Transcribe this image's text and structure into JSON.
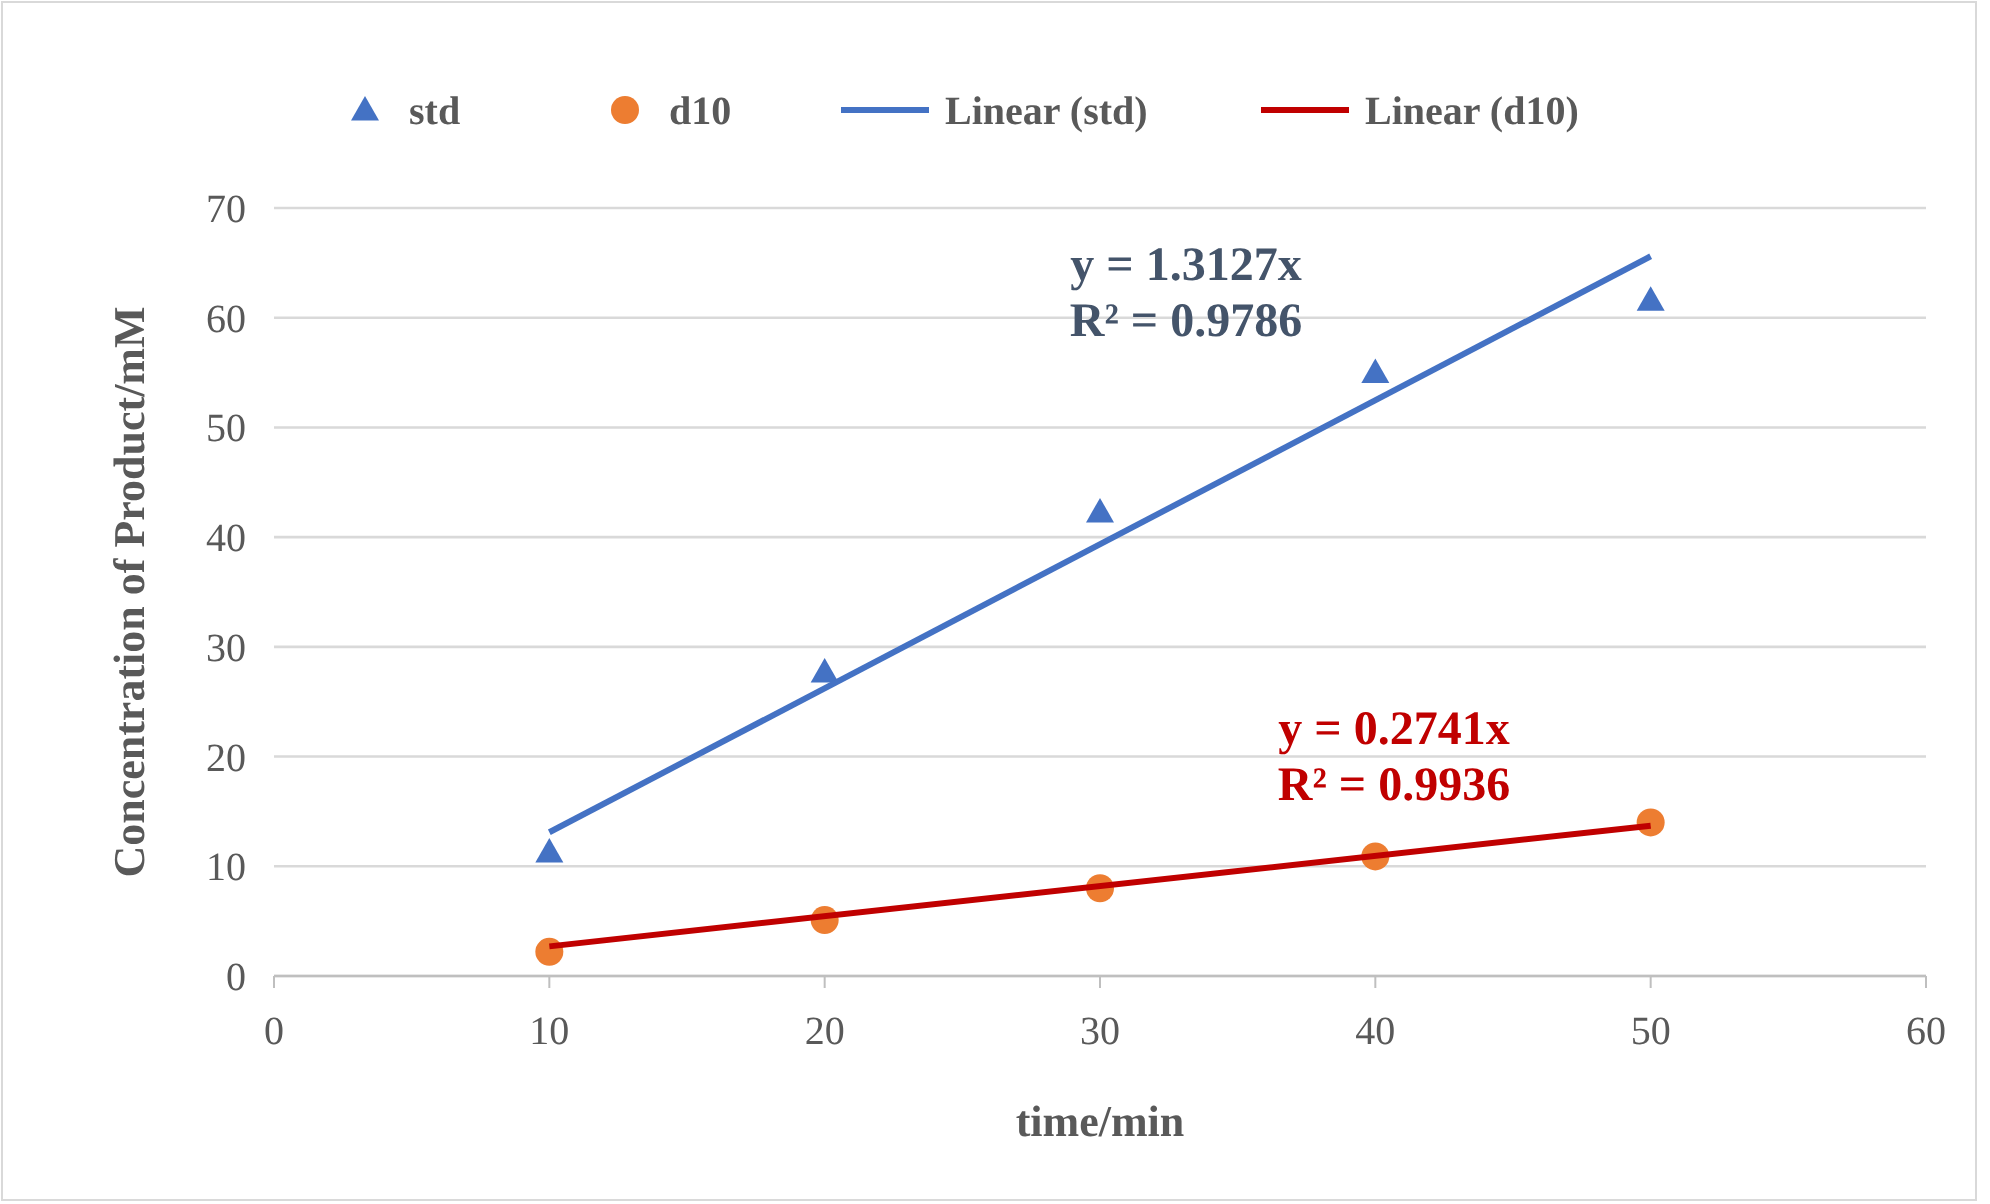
{
  "chart_data": {
    "type": "scatter",
    "xlabel": "time/min",
    "ylabel": "Concentration of Product/mM",
    "xlim": [
      0,
      60
    ],
    "xticks": [
      0,
      10,
      20,
      30,
      40,
      50,
      60
    ],
    "ylim": [
      0,
      70
    ],
    "yticks": [
      0,
      10,
      20,
      30,
      40,
      50,
      60,
      70
    ],
    "grid": "y",
    "legend": "top",
    "series": [
      {
        "name": "std",
        "marker": "triangle",
        "color": "#4472c4",
        "x": [
          10,
          20,
          30,
          40,
          50
        ],
        "values": [
          11.3,
          27.7,
          42.3,
          55.0,
          61.6
        ]
      },
      {
        "name": "d10",
        "marker": "circle",
        "color": "#ed7d31",
        "x": [
          10,
          20,
          30,
          40,
          50
        ],
        "values": [
          2.2,
          5.1,
          8.0,
          10.9,
          14.0
        ]
      },
      {
        "name": "Linear (std)",
        "type": "line",
        "marker": "none",
        "line_style": "solid",
        "color": "#4472c4",
        "x": [
          10,
          50
        ],
        "values": [
          13.1,
          65.6
        ]
      },
      {
        "name": "Linear (d10)",
        "type": "line",
        "marker": "none",
        "line_style": "solid",
        "color": "#c00000",
        "x": [
          10,
          50
        ],
        "values": [
          2.7,
          13.7
        ]
      }
    ],
    "annotations": [
      "y = 1.3127x\nR² = 0.9786",
      "y = 0.2741x\nR² = 0.9936"
    ]
  }
}
